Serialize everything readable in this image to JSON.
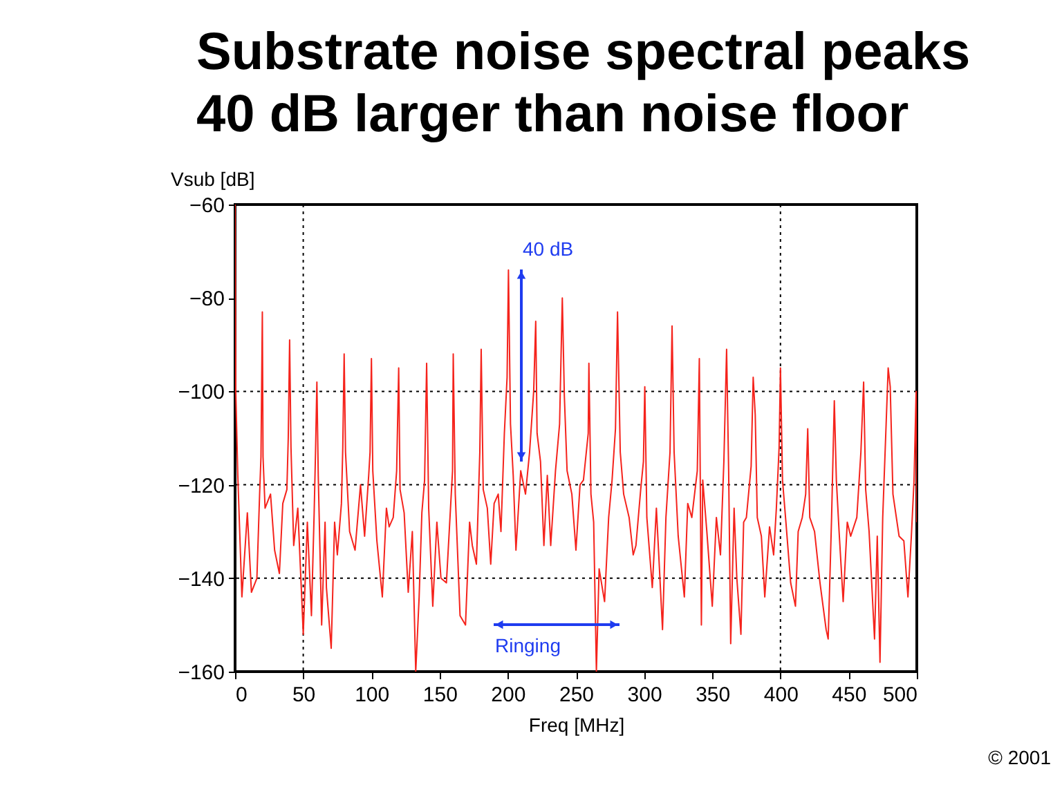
{
  "chart_data": {
    "type": "line",
    "title": "Substrate noise spectral peaks\n40 dB larger than noise floor",
    "xlabel": "Freq [MHz]",
    "ylabel": "Vsub [dB]",
    "x": [
      0,
      0.5,
      2,
      5,
      9,
      12,
      16,
      18,
      19,
      20,
      20.5,
      22,
      26,
      29,
      32.5,
      35,
      38,
      39,
      40,
      41,
      43,
      46,
      49,
      50,
      53,
      56,
      58,
      59,
      60,
      61,
      63.5,
      66,
      67,
      70.5,
      73,
      75,
      78,
      79,
      80,
      81,
      84,
      88,
      92,
      95,
      98,
      99,
      100,
      101,
      104,
      108,
      111,
      113,
      116,
      118.5,
      120,
      121,
      124,
      127,
      130,
      132.5,
      135,
      137,
      139,
      140.5,
      142,
      145,
      148,
      151,
      155,
      158,
      159.5,
      160,
      161.5,
      165,
      169,
      172,
      174,
      177,
      179.5,
      180.5,
      182,
      185,
      187.5,
      190,
      193,
      195,
      197.5,
      199.5,
      200.5,
      202,
      204,
      206,
      209.5,
      213,
      216,
      219,
      220.5,
      221.5,
      224,
      226.5,
      229,
      231.5,
      235,
      238,
      240,
      241.5,
      243.5,
      247,
      250,
      253,
      255.5,
      259,
      259.5,
      261,
      263,
      265,
      267,
      271,
      274,
      276.5,
      279,
      280.5,
      282.5,
      285,
      289,
      292,
      294,
      297.5,
      299.5,
      300.5,
      302,
      306,
      309,
      313.5,
      316,
      319,
      320.5,
      322,
      325,
      329.5,
      332,
      335,
      339,
      340.5,
      342,
      343,
      346,
      350,
      353,
      356,
      358.5,
      360.5,
      362,
      363.5,
      366,
      368,
      371,
      373,
      375,
      378.5,
      380,
      381.5,
      383,
      386,
      388.5,
      392,
      395,
      397,
      399,
      400,
      401.5,
      404,
      407.5,
      411,
      413,
      416,
      418.5,
      420,
      421.5,
      425,
      429,
      433.5,
      435,
      437.5,
      439.5,
      441,
      443,
      446,
      449,
      451.5,
      456,
      459,
      461,
      462.5,
      465,
      469,
      471,
      473,
      475,
      477.5,
      479,
      480.5,
      482.5,
      487,
      490.5,
      493.5,
      496,
      498,
      499.5,
      500
    ],
    "series": [
      {
        "color": "#f5231c",
        "values": [
          -60,
          -100,
          -118,
          -144,
          -126,
          -143,
          -140,
          -122,
          -114,
          -83,
          -114,
          -125,
          -122,
          -134,
          -139,
          -124,
          -121,
          -110,
          -89,
          -112,
          -133,
          -125,
          -145,
          -152,
          -128,
          -148,
          -126,
          -113,
          -98,
          -118,
          -150,
          -128,
          -142,
          -155,
          -128,
          -135,
          -124,
          -112,
          -92,
          -113,
          -130,
          -134,
          -120,
          -131,
          -118,
          -113,
          -93,
          -117,
          -132,
          -144,
          -125,
          -129,
          -127,
          -117,
          -95,
          -121,
          -126,
          -143,
          -130,
          -160,
          -144,
          -126,
          -119,
          -94,
          -125,
          -146,
          -128,
          -140,
          -141,
          -125,
          -117,
          -92,
          -122,
          -148,
          -150,
          -128,
          -133,
          -137,
          -113,
          -91,
          -121,
          -125,
          -137,
          -124,
          -122,
          -130,
          -109,
          -97,
          -74,
          -107,
          -118,
          -134,
          -117,
          -122,
          -113,
          -100,
          -85,
          -109,
          -115,
          -133,
          -118,
          -133,
          -117,
          -107,
          -80,
          -101,
          -117,
          -122,
          -134,
          -120,
          -119,
          -109,
          -94,
          -122,
          -128,
          -160,
          -138,
          -145,
          -127,
          -119,
          -108,
          -83,
          -113,
          -122,
          -127,
          -135,
          -133,
          -121,
          -115,
          -99,
          -127,
          -142,
          -125,
          -151,
          -127,
          -113,
          -86,
          -113,
          -131,
          -144,
          -124,
          -127,
          -117,
          -93,
          -150,
          -119,
          -130,
          -146,
          -127,
          -135,
          -115,
          -91,
          -117,
          -154,
          -125,
          -140,
          -152,
          -128,
          -127,
          -116,
          -97,
          -105,
          -127,
          -131,
          -144,
          -129,
          -135,
          -125,
          -112,
          -95,
          -119,
          -128,
          -141,
          -146,
          -130,
          -127,
          -122,
          -108,
          -127,
          -130,
          -141,
          -151,
          -153,
          -127,
          -102,
          -119,
          -130,
          -145,
          -128,
          -131,
          -127,
          -113,
          -98,
          -121,
          -130,
          -153,
          -131,
          -158,
          -127,
          -107,
          -95,
          -99,
          -122,
          -131,
          -132,
          -144,
          -131,
          -119,
          -100,
          -128
        ]
      }
    ],
    "xlim": [
      0,
      500
    ],
    "ylim": [
      -160,
      -60
    ],
    "xticks": [
      0,
      50,
      100,
      150,
      200,
      250,
      300,
      350,
      400,
      450,
      500
    ],
    "yticks": [
      -160,
      -140,
      -120,
      -100,
      -80,
      -60
    ],
    "ref_lines": [
      {
        "axis": "x",
        "value": 50,
        "color": "#000000",
        "line_style": "dotted"
      },
      {
        "axis": "x",
        "value": 400,
        "color": "#000000",
        "line_style": "dotted"
      },
      {
        "axis": "y",
        "value": -100,
        "color": "#000000",
        "line_style": "dotted"
      },
      {
        "axis": "y",
        "value": -120,
        "color": "#000000",
        "line_style": "dotted"
      },
      {
        "axis": "y",
        "value": -140,
        "color": "#000000",
        "line_style": "dotted"
      }
    ],
    "annotations": [
      "40 dB",
      "Ringing",
      "© 2001"
    ],
    "line_style": "solid"
  }
}
